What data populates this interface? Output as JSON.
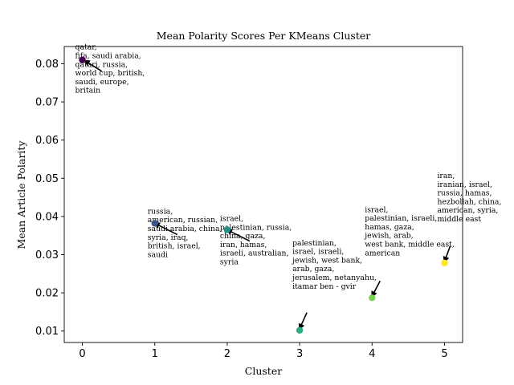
{
  "chart_data": {
    "type": "scatter",
    "title": "Mean Polarity Scores Per KMeans Cluster",
    "xlabel": "Cluster",
    "ylabel": "Mean Article Polarity",
    "xlim": [
      -0.25,
      5.25
    ],
    "ylim": [
      0.007,
      0.0845
    ],
    "xticks": [
      "0",
      "1",
      "2",
      "3",
      "4",
      "5"
    ],
    "yticks": [
      "0.01",
      "0.02",
      "0.03",
      "0.04",
      "0.05",
      "0.06",
      "0.07",
      "0.08"
    ],
    "grid": false,
    "points": [
      {
        "x": 0,
        "y": 0.081,
        "color": "#440154"
      },
      {
        "x": 1,
        "y": 0.0382,
        "color": "#3b528b"
      },
      {
        "x": 2,
        "y": 0.0365,
        "color": "#21918c"
      },
      {
        "x": 3,
        "y": 0.0102,
        "color": "#27ad81"
      },
      {
        "x": 4,
        "y": 0.0187,
        "color": "#7ad151"
      },
      {
        "x": 5,
        "y": 0.0278,
        "color": "#fde725"
      }
    ],
    "annotations": [
      {
        "cluster": 0,
        "color": "#222222",
        "lines": [
          "qatar,",
          "fifa, saudi arabia,",
          "qatari, russia,",
          "world cup, british,",
          "saudi, europe,",
          "britain"
        ]
      },
      {
        "cluster": 1,
        "color": "#000000",
        "lines": [
          "russia,",
          "american, russian,",
          "saudi arabia, china,",
          "syria, iraq,",
          "british, israel,",
          "saudi"
        ]
      },
      {
        "cluster": 2,
        "color": "#000000",
        "lines": [
          "israel,",
          "palestinian, russia,",
          "china, gaza,",
          "iran, hamas,",
          "israeli, australian,",
          "syria"
        ]
      },
      {
        "cluster": 3,
        "color": "#000000",
        "lines": [
          "palestinian,",
          "israel, israeli,",
          "jewish, west bank,",
          "arab, gaza,",
          "jerusalem, netanyahu,",
          "itamar ben - gvir"
        ]
      },
      {
        "cluster": 4,
        "color": "#333333",
        "lines": [
          "israel,",
          "palestinian, israeli,",
          "hamas, gaza,",
          "jewish, arab,",
          "west bank, middle east,",
          "american"
        ]
      },
      {
        "cluster": 5,
        "color": "#000000",
        "lines": [
          "iran,",
          "iranian, israel,",
          "russia, hamas,",
          "hezbollah, china,",
          "american, syria,",
          "middle east"
        ]
      }
    ]
  }
}
